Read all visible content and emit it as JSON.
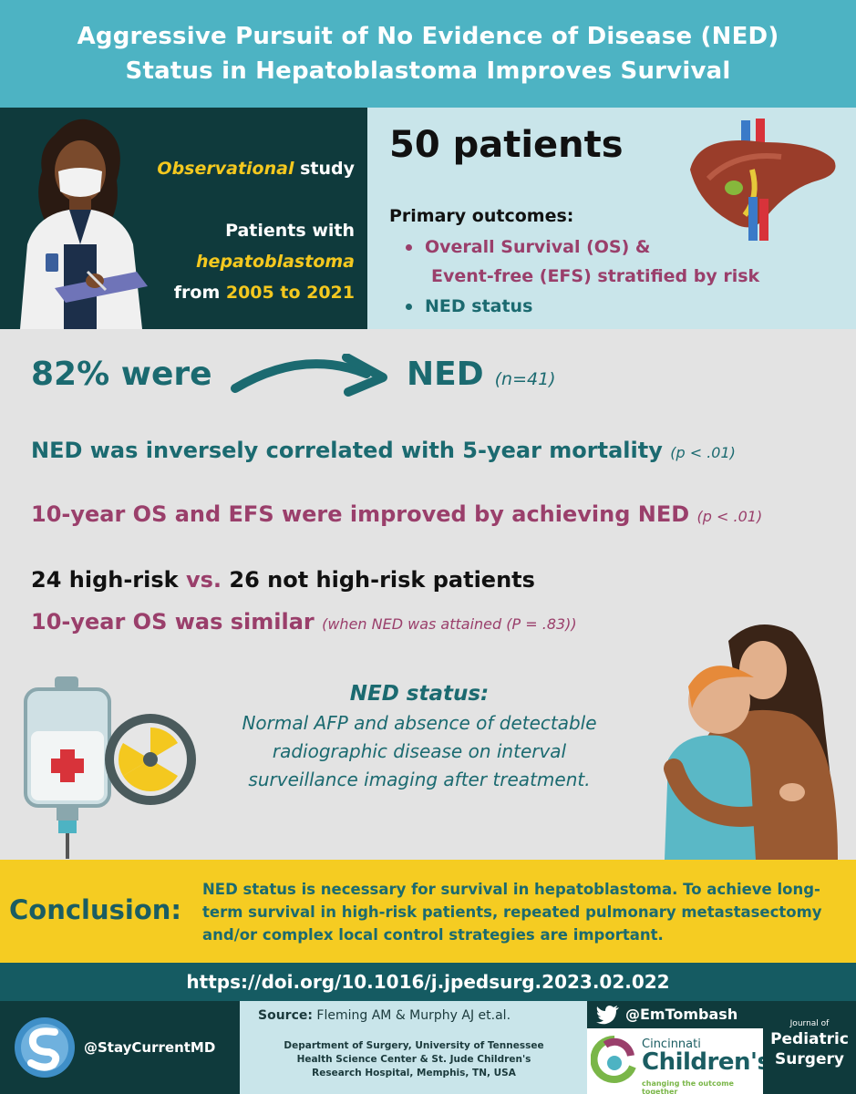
{
  "header": {
    "title_line1": "Aggressive Pursuit of No Evidence of Disease (NED)",
    "title_line2": "Status in Hepatoblastoma Improves Survival"
  },
  "study": {
    "design_italic": "Observational",
    "design_rest": " study",
    "patients_with": "Patients with",
    "condition": "hepatoblastoma",
    "from": "from ",
    "range": "2005 to 2021"
  },
  "outcomes": {
    "patients": "50 patients",
    "heading": "Primary outcomes:",
    "items": [
      "Overall Survival (OS) &",
      "Event-free (EFS) stratified by risk",
      "NED status"
    ]
  },
  "results": {
    "pct_were": "82% were",
    "ned": "NED",
    "n": "(n=41)",
    "finding1": "NED was inversely correlated with 5-year mortality",
    "finding1_p": "(p < .01)",
    "finding2": "10-year OS and EFS were improved by achieving NED",
    "finding2_p": "(p < .01)",
    "risk_a": "24 high-risk ",
    "risk_vs": "vs.",
    "risk_b": " 26 not high-risk patients",
    "finding3": "10-year OS was similar",
    "finding3_p": "(when NED was attained (P = .83))"
  },
  "definition": {
    "heading": "NED status:",
    "line1": "Normal AFP and absence of detectable",
    "line2": "radiographic disease on interval",
    "line3": "surveillance imaging after treatment."
  },
  "conclusion": {
    "label": "Conclusion:",
    "text": "NED status is necessary for survival in hepatoblastoma. To achieve long-term survival in high-risk patients, repeated pulmonary metastasectomy and/or complex local control strategies are important."
  },
  "doi": "https://doi.org/10.1016/j.jpedsurg.2023.02.022",
  "footer": {
    "handle1": "@StayCurrentMD",
    "source_label": "Source:",
    "source_text": " Fleming AM & Murphy AJ et.al.",
    "dept_line1": "Department of Surgery, University of Tennessee",
    "dept_line2": "Health Science Center & St. Jude Children's",
    "dept_line3": "Research Hospital, Memphis, TN, USA",
    "handle2": "@EmTombash",
    "cinci": "Cincinnati",
    "children": "Children's",
    "tagline": "changing the outcome together",
    "journal_of": "Journal of",
    "pediatric": "Pediatric",
    "surgery": "Surgery"
  },
  "colors": {
    "header_bg": "#4db3c3",
    "dark_teal": "#0f3a3c",
    "light_blue": "#c9e5ea",
    "teal_text": "#1b6a70",
    "plum_text": "#9a3f6b",
    "yellow": "#f4c81f",
    "conclusion_bg": "#f5cc22"
  },
  "icons": [
    "doctor-illustration",
    "liver-icon",
    "iv-bag-icon",
    "radiation-icon",
    "hugging-illustration",
    "staycurrent-logo-icon",
    "twitter-bird-icon",
    "cincinnati-childrens-logo-icon"
  ]
}
